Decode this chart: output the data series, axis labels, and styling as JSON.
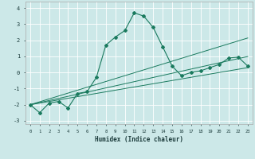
{
  "xlabel": "Humidex (Indice chaleur)",
  "x_values": [
    0,
    1,
    2,
    3,
    4,
    5,
    6,
    7,
    8,
    9,
    10,
    11,
    12,
    13,
    14,
    15,
    16,
    17,
    18,
    19,
    20,
    21,
    22,
    23
  ],
  "main_line": [
    -2.0,
    -2.5,
    -1.9,
    -1.8,
    -2.2,
    -1.3,
    -1.2,
    -0.3,
    1.7,
    2.2,
    2.6,
    3.7,
    3.5,
    2.8,
    1.6,
    0.4,
    -0.2,
    0.0,
    0.1,
    0.3,
    0.5,
    0.9,
    0.95,
    0.4
  ],
  "regression_lines": [
    [
      -2.0,
      -1.82,
      -1.64,
      -1.46,
      -1.28,
      -1.1,
      -0.92,
      -0.74,
      -0.56,
      -0.38,
      -0.2,
      -0.02,
      0.16,
      0.34,
      0.52,
      0.7,
      0.88,
      1.06,
      1.24,
      1.42,
      1.6,
      1.78,
      1.96,
      2.14
    ],
    [
      -2.0,
      -1.87,
      -1.74,
      -1.61,
      -1.48,
      -1.35,
      -1.22,
      -1.09,
      -0.96,
      -0.83,
      -0.7,
      -0.57,
      -0.44,
      -0.31,
      -0.18,
      -0.05,
      0.08,
      0.21,
      0.34,
      0.47,
      0.6,
      0.73,
      0.86,
      0.99
    ],
    [
      -2.0,
      -1.9,
      -1.8,
      -1.7,
      -1.6,
      -1.5,
      -1.4,
      -1.3,
      -1.2,
      -1.1,
      -1.0,
      -0.9,
      -0.8,
      -0.7,
      -0.6,
      -0.5,
      -0.4,
      -0.3,
      -0.2,
      -0.1,
      0.0,
      0.1,
      0.2,
      0.3
    ]
  ],
  "line_color": "#1a7a5e",
  "bg_color": "#cce8e8",
  "grid_color": "#ffffff",
  "ylim": [
    -3.2,
    4.4
  ],
  "xlim": [
    -0.5,
    23.5
  ],
  "yticks": [
    -3,
    -2,
    -1,
    0,
    1,
    2,
    3,
    4
  ],
  "xticks": [
    0,
    1,
    2,
    3,
    4,
    5,
    6,
    7,
    8,
    9,
    10,
    11,
    12,
    13,
    14,
    15,
    16,
    17,
    18,
    19,
    20,
    21,
    22,
    23
  ]
}
